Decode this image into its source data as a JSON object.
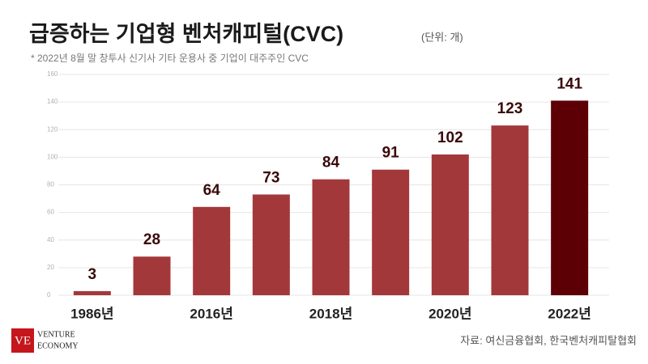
{
  "chart_data": {
    "type": "bar",
    "title": "급증하는 기업형 벤처캐피털(CVC)",
    "unit": "(단위: 개)",
    "subtitle": "* 2022년 8월 말 창투사 신기사 기타 운용사 중 기업이 대주주인 CVC",
    "source": "자료: 여신금융협회, 한국벤처캐피탈협회",
    "logo": {
      "mark": "VE",
      "line1": "VENTURE",
      "line2": "ECONOMY"
    },
    "categories": [
      "1986년",
      null,
      "2016년",
      null,
      "2018년",
      null,
      "2020년",
      null,
      "2022년"
    ],
    "values": [
      3,
      28,
      64,
      73,
      84,
      91,
      102,
      123,
      141
    ],
    "colors": [
      "#a3383b",
      "#a3383b",
      "#a3383b",
      "#a3383b",
      "#a3383b",
      "#a3383b",
      "#a3383b",
      "#a3383b",
      "#5c0006"
    ],
    "ylim": [
      0,
      160
    ],
    "yticks": [
      0,
      20,
      40,
      60,
      80,
      100,
      120,
      140,
      160
    ],
    "grid": true
  }
}
